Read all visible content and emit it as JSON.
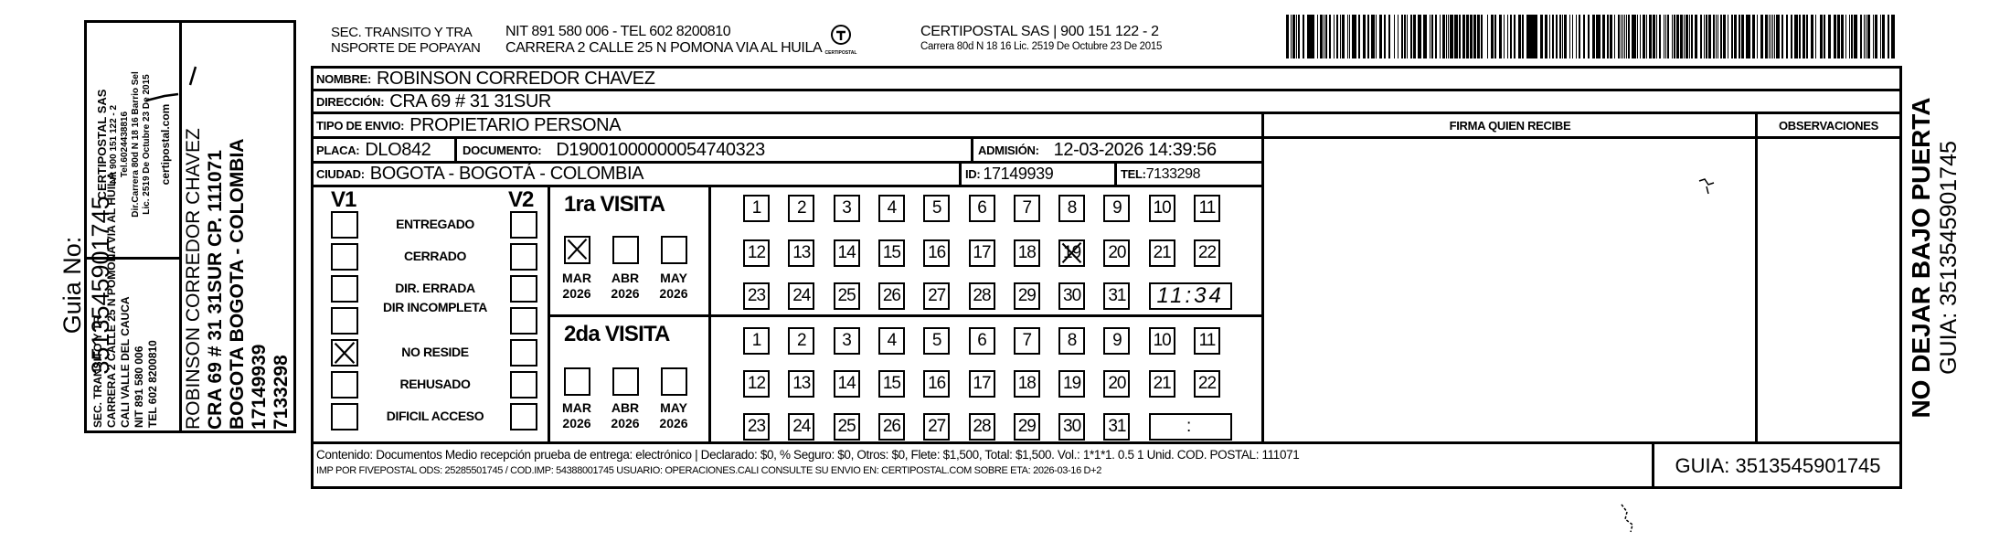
{
  "stub": {
    "guia_label": "Guia No: 3513545901745",
    "sender_lines": [
      "SEC. TRANSITO Y TR",
      "CARRERA 2 CALLE 25 N POMONA VIA AL HUILA",
      "CALI VALLE DEL CAUCA",
      "NIT 891 580 006",
      "TEL 602 8200810"
    ],
    "company_lines": [
      "CERTIPOSTAL SAS",
      "Nit 900 151 122 - 2",
      "Tel.6024438816",
      "Dir.Carrera 80d N 18 16 Barrio Sel",
      "Lic. 2519 De Octubre 23 De 2015"
    ],
    "company_web": "certipostal.com",
    "recipient_lines": [
      "ROBINSON CORREDOR CHAVEZ",
      "CRA 69 # 31 31SUR CP. 111071",
      "BOGOTA BOGOTA - COLOMBIA",
      "17149939",
      "7133298"
    ]
  },
  "header": {
    "sender_1": "SEC. TRANSITO Y TRA",
    "sender_2": "NSPORTE DE POPAYAN",
    "nit_line": "NIT 891 580 006 - TEL 602 8200810",
    "address_line": "CARRERA 2 CALLE 25 N POMONA VIA AL HUILA",
    "logo_caption": "CERTIPOSTAL",
    "company_line": "CERTIPOSTAL SAS | 900 151 122 - 2",
    "company_sub": "Carrera 80d N 18 16 Lic. 2519 De Octubre 23 De 2015",
    "barcode_value": "3513545901745"
  },
  "fields": {
    "nombre_label": "NOMBRE:",
    "nombre": "ROBINSON CORREDOR CHAVEZ",
    "direccion_label": "DIRECCIÓN:",
    "direccion": "CRA 69 # 31 31SUR",
    "tipo_label": "TIPO DE ENVIO:",
    "tipo": "PROPIETARIO PERSONA",
    "placa_label": "PLACA:",
    "placa": "DLO842",
    "documento_label": "DOCUMENTO:",
    "documento": "D19001000000054740323",
    "admision_label": "ADMISIÓN:",
    "admision": "12-03-2026 14:39:56",
    "ciudad_label": "CIUDAD:",
    "ciudad": "BOGOTA - BOGOTÁ - COLOMBIA",
    "id_label": "ID:",
    "id": "17149939",
    "tel_label": "TEL:",
    "tel": "7133298",
    "firma_header": "FIRMA QUIEN RECIBE",
    "observaciones_header": "OBSERVACIONES"
  },
  "status": {
    "v1_label": "V1",
    "v2_label": "V2",
    "items": [
      "ENTREGADO",
      "CERRADO",
      "DIR. ERRADA",
      "DIR INCOMPLETA",
      "NO RESIDE",
      "REHUSADO",
      "DIFICIL ACCESO"
    ],
    "v1_checked": [
      false,
      false,
      false,
      false,
      true,
      false,
      false
    ],
    "v2_checked": [
      false,
      false,
      false,
      false,
      false,
      false,
      false
    ]
  },
  "visits": [
    {
      "title": "1ra VISITA",
      "months": [
        {
          "label": "MAR",
          "year": "2026",
          "checked": true
        },
        {
          "label": "ABR",
          "year": "2026",
          "checked": false
        },
        {
          "label": "MAY",
          "year": "2026",
          "checked": false
        }
      ],
      "marked_day": 19,
      "time": "11:34"
    },
    {
      "title": "2da VISITA",
      "months": [
        {
          "label": "MAR",
          "year": "2026",
          "checked": false
        },
        {
          "label": "ABR",
          "year": "2026",
          "checked": false
        },
        {
          "label": "MAY",
          "year": "2026",
          "checked": false
        }
      ],
      "marked_day": null,
      "time": ":"
    }
  ],
  "days": [
    "1",
    "2",
    "3",
    "4",
    "5",
    "6",
    "7",
    "8",
    "9",
    "10",
    "11",
    "12",
    "13",
    "14",
    "15",
    "16",
    "17",
    "18",
    "19",
    "20",
    "21",
    "22",
    "23",
    "24",
    "25",
    "26",
    "27",
    "28",
    "29",
    "30",
    "31"
  ],
  "footer": {
    "line1": "Contenido: Documentos Medio recepción prueba de entrega: electrónico | Declarado: $0, % Seguro: $0, Otros: $0, Flete: $1,500, Total: $1,500. Vol.: 1*1*1. 0.5  1 Unid. COD. POSTAL: 111071",
    "line2": "IMP POR FIVEPOSTAL ODS: 25285501745 / COD.IMP: 54388001745 USUARIO: OPERACIONES.CALI CONSULTE SU ENVIO EN: CERTIPOSTAL.COM SOBRE ETA: 2026-03-16 D+2",
    "guia": "GUIA: 3513545901745"
  },
  "side": {
    "warning": "NO DEJAR BAJO PUERTA",
    "guia": "GUIA: 3513545901745"
  }
}
